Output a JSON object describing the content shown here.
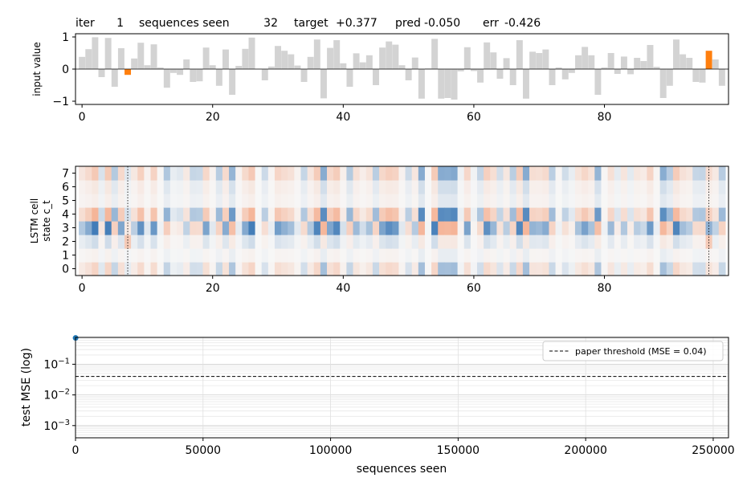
{
  "header": {
    "iter_label": "iter",
    "iter_value": "1",
    "seen_label": "sequences seen",
    "seen_value": "32",
    "target_label": "target",
    "target_value": "+0.377",
    "pred_label": "pred",
    "pred_value": "-0.050",
    "err_label": "err",
    "err_value": "-0.426"
  },
  "colors": {
    "bar": "#d3d3d3",
    "marked": "#ff7f0e",
    "point": "#1f77b4",
    "neg": "#2166ac",
    "pos": "#f4a582"
  },
  "chart_data": [
    {
      "type": "bar",
      "ylabel": "input value",
      "xlim": [
        -1,
        99
      ],
      "ylim": [
        -1.1,
        1.1
      ],
      "xticks": [
        0,
        20,
        40,
        60,
        80
      ],
      "yticks": [
        -1,
        0,
        1
      ],
      "marked_indices": [
        7,
        96
      ],
      "values": [
        0.38,
        0.62,
        0.99,
        -0.25,
        0.97,
        -0.55,
        0.65,
        -0.18,
        0.33,
        0.82,
        0.12,
        0.77,
        0.05,
        -0.58,
        -0.12,
        -0.18,
        0.3,
        -0.4,
        -0.38,
        0.67,
        0.12,
        -0.52,
        0.61,
        -0.8,
        0.1,
        0.63,
        0.98,
        0.01,
        -0.35,
        0.08,
        0.72,
        0.57,
        0.46,
        0.11,
        -0.4,
        0.38,
        0.92,
        -0.91,
        0.66,
        0.9,
        0.18,
        -0.55,
        0.49,
        0.21,
        0.43,
        -0.5,
        0.67,
        0.86,
        0.76,
        0.12,
        -0.35,
        0.36,
        -0.92,
        0.02,
        0.94,
        -0.92,
        -0.9,
        -0.95,
        -0.07,
        0.68,
        -0.06,
        -0.42,
        0.83,
        0.52,
        -0.3,
        0.34,
        -0.5,
        0.9,
        -0.92,
        0.54,
        0.5,
        0.61,
        -0.5,
        0.05,
        -0.32,
        -0.12,
        0.43,
        0.69,
        0.43,
        -0.8,
        0.05,
        0.5,
        -0.15,
        0.39,
        -0.16,
        0.35,
        0.25,
        0.75,
        0.07,
        -0.9,
        -0.52,
        0.92,
        0.46,
        0.35,
        -0.4,
        -0.42,
        0.57,
        0.3,
        -0.52
      ]
    },
    {
      "type": "heatmap",
      "ylabel_line1": "LSTM cell",
      "ylabel_line2": "state c_t",
      "xticks": [
        0,
        20,
        40,
        60,
        80
      ],
      "rows": [
        "0",
        "1",
        "2",
        "3",
        "4",
        "5",
        "6",
        "7"
      ],
      "marker_columns": [
        7,
        96
      ]
    },
    {
      "type": "scatter",
      "xlabel": "sequences seen",
      "ylabel": "test MSE  (log)",
      "yscale": "log",
      "xlim": [
        0,
        256000
      ],
      "ylim": [
        0.0004,
        0.75
      ],
      "xticks": [
        0,
        50000,
        100000,
        150000,
        200000,
        250000
      ],
      "yticks": [
        0.001,
        0.01,
        0.1
      ],
      "points": [
        {
          "x": 32,
          "y": 0.72
        }
      ],
      "threshold": {
        "y": 0.04,
        "label": "paper threshold (MSE = 0.04)"
      },
      "grid": true,
      "legend": "top-right"
    }
  ]
}
